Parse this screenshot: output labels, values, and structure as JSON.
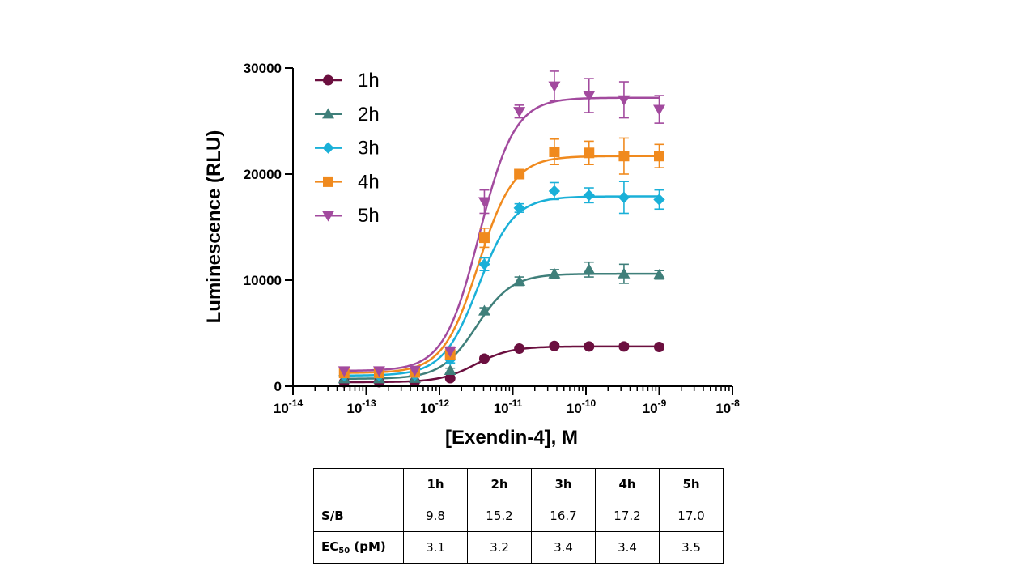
{
  "chart_data": {
    "type": "scatter",
    "xlabel": "[Exendin-4], M",
    "ylabel": "Luminescence (RLU)",
    "x_scale": "log",
    "xlim": [
      1e-14,
      1e-08
    ],
    "ylim": [
      0,
      30000
    ],
    "x_ticks": [
      {
        "exp": "-14",
        "value": 1e-14
      },
      {
        "exp": "-13",
        "value": 1e-13
      },
      {
        "exp": "-12",
        "value": 1e-12
      },
      {
        "exp": "-11",
        "value": 1e-11
      },
      {
        "exp": "-10",
        "value": 1e-10
      },
      {
        "exp": "-9",
        "value": 1e-09
      },
      {
        "exp": "-8",
        "value": 1e-08
      }
    ],
    "x_tick_base": "10",
    "y_ticks": [
      0,
      10000,
      20000,
      30000
    ],
    "y_tick_labels": [
      "0",
      "10000",
      "20000",
      "30000"
    ],
    "legend_position": "top-left",
    "x": [
      5e-14,
      1.5e-13,
      4.6e-13,
      1.4e-12,
      4.1e-12,
      1.23e-11,
      3.7e-11,
      1.1e-10,
      3.3e-10,
      1e-09
    ],
    "series": [
      {
        "name": "1h",
        "marker": "circle",
        "color": "#6b0f3f",
        "bottom": 380,
        "top": 3750,
        "ec50": 3.1e-12,
        "values": [
          380,
          380,
          420,
          760,
          2600,
          3550,
          3800,
          3750,
          3750,
          3700
        ],
        "errors": [
          100,
          100,
          100,
          100,
          150,
          200,
          200,
          150,
          200,
          150
        ]
      },
      {
        "name": "2h",
        "marker": "triangle-up",
        "color": "#3f7f7a",
        "bottom": 700,
        "top": 10600,
        "ec50": 3.2e-12,
        "values": [
          700,
          700,
          740,
          1500,
          7100,
          9900,
          10600,
          11000,
          10600,
          10500
        ],
        "errors": [
          150,
          150,
          150,
          200,
          300,
          400,
          400,
          700,
          900,
          400
        ]
      },
      {
        "name": "3h",
        "marker": "diamond",
        "color": "#1ab0d8",
        "bottom": 1000,
        "top": 17900,
        "ec50": 3.4e-12,
        "values": [
          1000,
          1000,
          1050,
          2500,
          11500,
          16800,
          18400,
          18000,
          17800,
          17600
        ],
        "errors": [
          150,
          150,
          150,
          300,
          600,
          400,
          800,
          700,
          1500,
          900
        ]
      },
      {
        "name": "4h",
        "marker": "square",
        "color": "#f08a1e",
        "bottom": 1250,
        "top": 21700,
        "ec50": 3.4e-12,
        "values": [
          1250,
          1250,
          1300,
          3000,
          14000,
          20000,
          22100,
          22000,
          21700,
          21700
        ],
        "errors": [
          200,
          200,
          200,
          300,
          900,
          400,
          1200,
          1100,
          1700,
          1100
        ]
      },
      {
        "name": "5h",
        "marker": "triangle-down",
        "color": "#a24a9e",
        "bottom": 1450,
        "top": 27200,
        "ec50": 3.5e-12,
        "values": [
          1450,
          1450,
          1500,
          3300,
          17400,
          25900,
          28300,
          27400,
          27000,
          26100
        ],
        "errors": [
          200,
          200,
          200,
          400,
          1100,
          600,
          1400,
          1600,
          1700,
          1300
        ]
      }
    ]
  },
  "table": {
    "headers": [
      "",
      "1h",
      "2h",
      "3h",
      "4h",
      "5h"
    ],
    "sb_label": "S/B",
    "sb_values": [
      "9.8",
      "15.2",
      "16.7",
      "17.2",
      "17.0"
    ],
    "ec50_label_main": "EC",
    "ec50_label_sub": "50",
    "ec50_label_unit": " (pM)",
    "ec50_values": [
      "3.1",
      "3.2",
      "3.4",
      "3.4",
      "3.5"
    ]
  }
}
